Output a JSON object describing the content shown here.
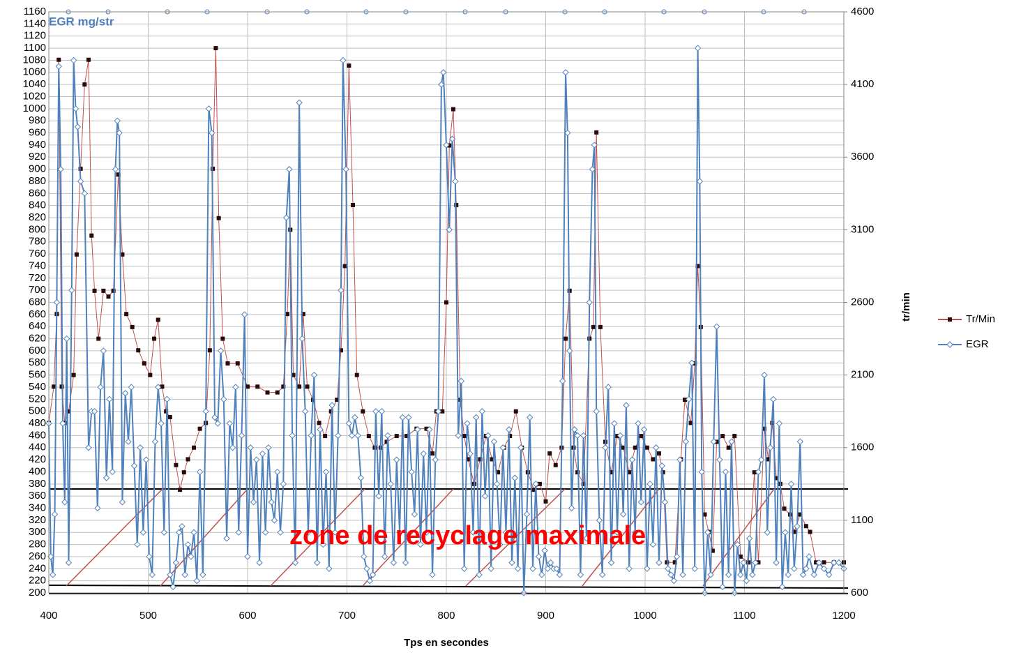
{
  "chart_data": {
    "type": "line",
    "y_label": "EGR mg/str",
    "y2_label": "tr/min",
    "x_label": "Tps en secondes",
    "annotation": "zone de recyclage maximale",
    "xlim": [
      400,
      1200
    ],
    "xticks": [
      400,
      500,
      600,
      700,
      800,
      900,
      1000,
      1100,
      1200
    ],
    "ylim": [
      200,
      1160
    ],
    "yticks": [
      200,
      220,
      240,
      260,
      280,
      300,
      320,
      340,
      360,
      380,
      400,
      420,
      440,
      460,
      480,
      500,
      520,
      540,
      560,
      580,
      600,
      620,
      640,
      660,
      680,
      700,
      720,
      740,
      760,
      780,
      800,
      820,
      840,
      860,
      880,
      900,
      920,
      940,
      960,
      980,
      1000,
      1020,
      1040,
      1060,
      1080,
      1100,
      1120,
      1140,
      1160
    ],
    "y2lim": [
      600,
      4600
    ],
    "y2ticks": [
      600,
      1100,
      1600,
      2100,
      2600,
      3100,
      3600,
      4100,
      4600
    ],
    "grid": true,
    "legend": "right",
    "series": [
      {
        "name": "Tr/Min",
        "color": "#c0504d",
        "marker_color": "#2a0a0a",
        "marker": "square",
        "axis": "y2",
        "x": [
          400,
          405,
          408,
          410,
          413,
          416,
          420,
          425,
          428,
          432,
          436,
          440,
          443,
          446,
          450,
          455,
          460,
          465,
          470,
          474,
          478,
          484,
          490,
          496,
          502,
          506,
          510,
          514,
          518,
          522,
          528,
          532,
          536,
          540,
          546,
          552,
          558,
          562,
          565,
          568,
          571,
          575,
          580,
          590,
          600,
          610,
          620,
          630,
          636,
          640,
          643,
          646,
          652,
          656,
          660,
          666,
          672,
          678,
          684,
          690,
          694,
          698,
          702,
          706,
          710,
          716,
          722,
          728,
          734,
          740,
          750,
          760,
          770,
          780,
          786,
          790,
          796,
          800,
          803,
          807,
          810,
          814,
          818,
          822,
          828,
          834,
          840,
          846,
          852,
          858,
          864,
          870,
          876,
          882,
          888,
          894,
          900,
          904,
          910,
          916,
          920,
          924,
          928,
          932,
          938,
          944,
          948,
          951,
          955,
          960,
          966,
          972,
          978,
          984,
          990,
          996,
          1002,
          1008,
          1014,
          1018,
          1022,
          1030,
          1036,
          1040,
          1046,
          1050,
          1053,
          1056,
          1060,
          1064,
          1068,
          1072,
          1078,
          1084,
          1090,
          1096,
          1104,
          1110,
          1114,
          1120,
          1124,
          1128,
          1132,
          1136,
          1140,
          1146,
          1150,
          1156,
          1162,
          1166,
          1172,
          1180,
          1190,
          1200
        ],
        "values": [
          1770,
          2020,
          2520,
          4270,
          2020,
          1770,
          1850,
          2100,
          2930,
          3520,
          4100,
          4270,
          3060,
          2680,
          2350,
          2680,
          2640,
          2680,
          3480,
          2930,
          2520,
          2430,
          2270,
          2180,
          2100,
          2350,
          2480,
          2020,
          1850,
          1810,
          1480,
          1310,
          1430,
          1520,
          1600,
          1730,
          1770,
          2270,
          3520,
          4350,
          3180,
          2350,
          2180,
          2180,
          2020,
          2020,
          1980,
          1980,
          2020,
          2520,
          3100,
          2100,
          2020,
          2520,
          2020,
          1930,
          1770,
          1680,
          1850,
          1930,
          2270,
          2850,
          4230,
          3270,
          2100,
          1850,
          1680,
          1600,
          1600,
          1640,
          1680,
          1680,
          1730,
          1730,
          1560,
          1850,
          1850,
          2600,
          3680,
          3930,
          3270,
          1930,
          1680,
          1520,
          1350,
          1520,
          1680,
          1520,
          1430,
          1600,
          1680,
          1850,
          1600,
          1430,
          1310,
          1350,
          1230,
          1560,
          1480,
          1600,
          2350,
          2680,
          1600,
          1430,
          1350,
          2350,
          2430,
          3770,
          2430,
          1640,
          1430,
          1680,
          1600,
          1430,
          1600,
          1680,
          1600,
          1520,
          1560,
          1430,
          810,
          810,
          1520,
          1930,
          1770,
          2180,
          2850,
          2430,
          1140,
          1020,
          890,
          1640,
          1680,
          1600,
          1680,
          850,
          810,
          1430,
          810,
          1730,
          1520,
          1770,
          1390,
          1350,
          1180,
          1140,
          1020,
          1140,
          1060,
          1020,
          810,
          810,
          810,
          810
        ]
      },
      {
        "name": "EGR",
        "color": "#4f81bd",
        "marker": "diamond",
        "axis": "y",
        "x": [
          400,
          402,
          404,
          406,
          408,
          410,
          412,
          414,
          416,
          418,
          420,
          423,
          425,
          427,
          429,
          432,
          436,
          440,
          443,
          446,
          449,
          452,
          455,
          458,
          461,
          464,
          467,
          469,
          471,
          474,
          477,
          480,
          483,
          486,
          489,
          492,
          495,
          498,
          501,
          504,
          507,
          510,
          513,
          516,
          519,
          522,
          525,
          528,
          531,
          534,
          537,
          540,
          543,
          546,
          549,
          552,
          555,
          558,
          561,
          564,
          567,
          570,
          573,
          576,
          579,
          582,
          585,
          588,
          591,
          594,
          597,
          600,
          603,
          606,
          609,
          612,
          615,
          618,
          621,
          624,
          627,
          630,
          633,
          636,
          639,
          642,
          645,
          648,
          652,
          655,
          658,
          661,
          664,
          667,
          670,
          673,
          676,
          679,
          682,
          685,
          688,
          691,
          694,
          696,
          699,
          702,
          705,
          708,
          711,
          714,
          717,
          720,
          723,
          726,
          729,
          732,
          735,
          738,
          741,
          744,
          747,
          750,
          753,
          756,
          759,
          762,
          765,
          768,
          771,
          774,
          777,
          780,
          783,
          786,
          789,
          792,
          795,
          797,
          800,
          803,
          806,
          809,
          812,
          815,
          818,
          821,
          824,
          827,
          830,
          833,
          836,
          839,
          842,
          845,
          848,
          851,
          854,
          857,
          860,
          863,
          866,
          869,
          872,
          875,
          878,
          881,
          884,
          887,
          890,
          893,
          896,
          899,
          902,
          905,
          908,
          911,
          914,
          917,
          920,
          922,
          924,
          926,
          929,
          932,
          935,
          938,
          941,
          944,
          947,
          949,
          951,
          954,
          957,
          960,
          963,
          966,
          969,
          972,
          975,
          978,
          981,
          984,
          987,
          990,
          993,
          996,
          999,
          1002,
          1005,
          1008,
          1011,
          1014,
          1017,
          1020,
          1023,
          1026,
          1029,
          1032,
          1035,
          1038,
          1041,
          1044,
          1047,
          1050,
          1053,
          1055,
          1057,
          1060,
          1063,
          1066,
          1069,
          1072,
          1075,
          1078,
          1081,
          1084,
          1087,
          1090,
          1093,
          1096,
          1099,
          1102,
          1105,
          1108,
          1111,
          1114,
          1117,
          1120,
          1123,
          1126,
          1129,
          1132,
          1135,
          1138,
          1141,
          1144,
          1147,
          1150,
          1153,
          1156,
          1159,
          1162,
          1165,
          1170,
          1175,
          1180,
          1185,
          1190,
          1195,
          1200
        ],
        "values": [
          480,
          260,
          230,
          330,
          680,
          1070,
          900,
          480,
          350,
          620,
          250,
          700,
          1080,
          1000,
          970,
          880,
          860,
          440,
          500,
          500,
          340,
          540,
          600,
          390,
          520,
          400,
          900,
          980,
          960,
          350,
          530,
          450,
          540,
          410,
          280,
          440,
          300,
          420,
          260,
          230,
          450,
          540,
          480,
          300,
          520,
          230,
          210,
          250,
          300,
          310,
          230,
          280,
          260,
          300,
          220,
          400,
          230,
          500,
          1000,
          960,
          490,
          480,
          600,
          520,
          290,
          480,
          440,
          540,
          300,
          460,
          660,
          260,
          440,
          350,
          420,
          250,
          430,
          300,
          440,
          350,
          320,
          400,
          300,
          380,
          820,
          900,
          460,
          250,
          1010,
          620,
          500,
          300,
          460,
          560,
          250,
          470,
          280,
          400,
          240,
          510,
          300,
          460,
          700,
          1080,
          900,
          480,
          460,
          490,
          460,
          390,
          260,
          240,
          220,
          230,
          500,
          360,
          500,
          260,
          460,
          380,
          250,
          420,
          300,
          490,
          250,
          490,
          400,
          330,
          470,
          280,
          430,
          300,
          470,
          230,
          420,
          500,
          1040,
          1060,
          940,
          800,
          950,
          880,
          460,
          550,
          240,
          480,
          430,
          300,
          490,
          230,
          500,
          360,
          460,
          240,
          450,
          380,
          280,
          440,
          300,
          470,
          250,
          390,
          240,
          440,
          200,
          330,
          490,
          240,
          380,
          260,
          230,
          270,
          240,
          250,
          240,
          240,
          230,
          550,
          1060,
          960,
          600,
          340,
          470,
          460,
          230,
          460,
          290,
          680,
          900,
          940,
          500,
          320,
          230,
          440,
          540,
          250,
          480,
          300,
          460,
          330,
          510,
          240,
          420,
          300,
          480,
          350,
          470,
          240,
          380,
          280,
          440,
          250,
          410,
          350,
          240,
          230,
          220,
          260,
          420,
          230,
          450,
          520,
          580,
          240,
          1100,
          880,
          400,
          200,
          300,
          230,
          450,
          640,
          420,
          210,
          400,
          230,
          450,
          200,
          280,
          230,
          250,
          220,
          290,
          230,
          250,
          400,
          420,
          560,
          300,
          440,
          520,
          250,
          480,
          210,
          300,
          230,
          380,
          240,
          310,
          450,
          230,
          240,
          260,
          230,
          250,
          240,
          230,
          250,
          250,
          240
        ]
      }
    ]
  }
}
